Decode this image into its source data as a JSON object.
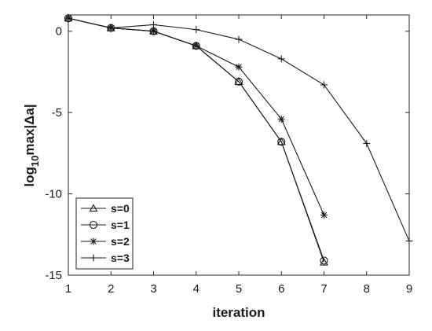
{
  "chart_data": {
    "type": "line",
    "xlabel": "iteration",
    "ylabel": {
      "base": "log",
      "sub": "10",
      "rest": "max|Δa|"
    },
    "xlim": [
      1,
      9
    ],
    "ylim": [
      -15,
      1
    ],
    "xticks": [
      1,
      2,
      3,
      4,
      5,
      6,
      7,
      8,
      9
    ],
    "yticks": [
      0,
      -5,
      -10,
      -15
    ],
    "grid": false,
    "legend_position": "bottom-left",
    "series": [
      {
        "name": "s=0",
        "marker": "triangle",
        "x": [
          1,
          2,
          3,
          4,
          5,
          6,
          7
        ],
        "y": [
          0.8,
          0.2,
          0.0,
          -0.9,
          -3.1,
          -6.8,
          -14.2
        ]
      },
      {
        "name": "s=1",
        "marker": "circle",
        "x": [
          1,
          2,
          3,
          4,
          5,
          6,
          7
        ],
        "y": [
          0.8,
          0.2,
          0.0,
          -0.9,
          -3.1,
          -6.8,
          -14.1
        ]
      },
      {
        "name": "s=2",
        "marker": "asterisk",
        "x": [
          1,
          2,
          3,
          4,
          5,
          6,
          7
        ],
        "y": [
          0.8,
          0.2,
          0.0,
          -0.9,
          -2.2,
          -5.4,
          -11.3
        ]
      },
      {
        "name": "s=3",
        "marker": "plus",
        "x": [
          1,
          2,
          3,
          4,
          5,
          6,
          7,
          8,
          9
        ],
        "y": [
          0.8,
          0.2,
          0.4,
          0.1,
          -0.5,
          -1.7,
          -3.3,
          -6.9,
          -12.9
        ]
      }
    ]
  }
}
